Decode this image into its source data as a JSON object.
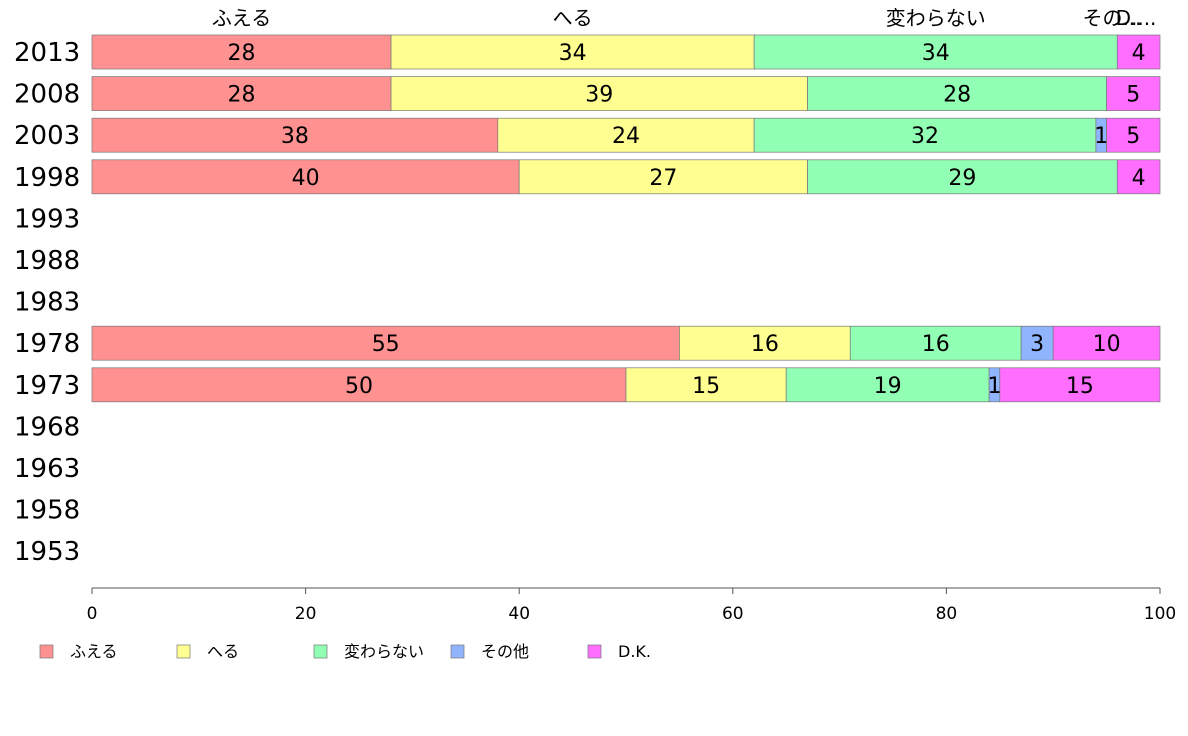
{
  "chart_data": {
    "type": "bar",
    "orientation": "horizontal",
    "stacked": true,
    "categories": [
      "2013",
      "2008",
      "2003",
      "1998",
      "1993",
      "1988",
      "1983",
      "1978",
      "1973",
      "1968",
      "1963",
      "1958",
      "1953"
    ],
    "series": [
      {
        "name": "ふえる",
        "color": "#ff9191",
        "values": [
          28,
          28,
          38,
          40,
          null,
          null,
          null,
          55,
          50,
          null,
          null,
          null,
          null
        ]
      },
      {
        "name": "へる",
        "color": "#ffff91",
        "values": [
          34,
          39,
          24,
          27,
          null,
          null,
          null,
          16,
          15,
          null,
          null,
          null,
          null
        ]
      },
      {
        "name": "変わらない",
        "color": "#91ffb4",
        "values": [
          34,
          28,
          32,
          29,
          null,
          null,
          null,
          16,
          19,
          null,
          null,
          null,
          null
        ]
      },
      {
        "name": "その他",
        "color": "#91b4ff",
        "values": [
          0,
          0,
          1,
          0,
          null,
          null,
          null,
          3,
          1,
          null,
          null,
          null,
          null
        ]
      },
      {
        "name": "D.K.",
        "color": "#ff6eff",
        "values": [
          4,
          5,
          5,
          4,
          null,
          null,
          null,
          10,
          15,
          null,
          null,
          null,
          null
        ]
      }
    ],
    "column_headers": [
      "ふえる",
      "へる",
      "変わらない",
      "その...",
      "D...."
    ],
    "xlim": [
      0,
      100
    ],
    "xticks": [
      "0",
      "20",
      "40",
      "60",
      "80",
      "100"
    ],
    "legend_position": "bottom-left",
    "grid": false
  }
}
